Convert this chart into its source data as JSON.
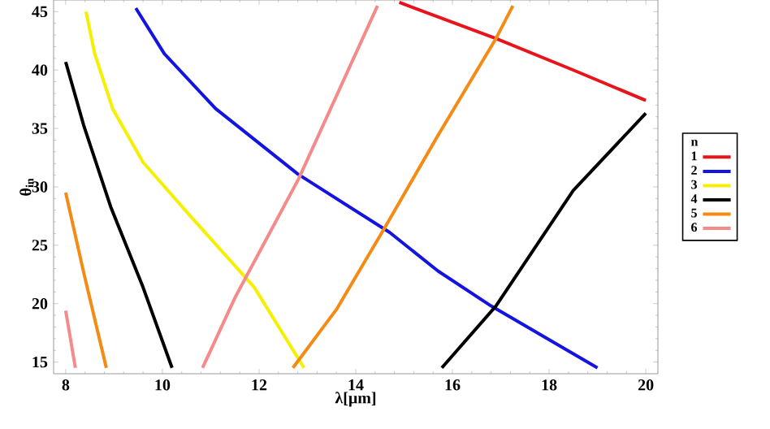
{
  "chart_data": {
    "type": "line",
    "xlabel": "λ[μm]",
    "ylabel": "θ$_{in}$",
    "legend_title": "n",
    "legend": "right",
    "grid": false,
    "xlim": [
      7.75,
      20.25
    ],
    "ylim": [
      14,
      46
    ],
    "xticks": [
      8,
      10,
      12,
      14,
      16,
      18,
      20
    ],
    "yticks": [
      15,
      20,
      25,
      30,
      35,
      40,
      45
    ],
    "series": [
      {
        "name": "1",
        "color": "#e8141c",
        "x": [
          14.9,
          16.9,
          18.5,
          20.0
        ],
        "values": [
          45.8,
          42.7,
          40.0,
          37.4
        ]
      },
      {
        "name": "2",
        "color": "#1414e0",
        "x": [
          9.45,
          10.04,
          11.1,
          12.8,
          14.7,
          15.7,
          16.8,
          19.0
        ],
        "values": [
          45.3,
          41.4,
          36.7,
          31.1,
          26.1,
          22.8,
          19.8,
          14.5
        ]
      },
      {
        "name": "3",
        "color": "#f5f000",
        "x": [
          8.42,
          8.6,
          8.97,
          9.6,
          10.6,
          11.9,
          12.93
        ],
        "values": [
          45,
          41.4,
          36.7,
          32.1,
          27.4,
          21.4,
          14.5
        ]
      },
      {
        "name": "4",
        "color": "#000000",
        "x": [
          8.0,
          8.37,
          8.93,
          9.6,
          10.2,
          13.0,
          15.78,
          16.9,
          18.5,
          20.0
        ],
        "values": [
          40.7,
          35.3,
          28.3,
          21.4,
          14.5,
          null,
          14.5,
          19.8,
          29.7,
          36.3
        ]
      },
      {
        "name": "5",
        "color": "#f58a14",
        "x": [
          8.0,
          8.37,
          8.84,
          10.8,
          12.7,
          13.6,
          14.6,
          15.7,
          16.9,
          17.25
        ],
        "values": [
          29.5,
          22.7,
          14.5,
          null,
          14.5,
          19.5,
          26.5,
          34.4,
          42.7,
          45.5
        ]
      },
      {
        "name": "6",
        "color": "#f58a8a",
        "x": [
          8.0,
          8.2,
          9.5,
          10.83,
          11.5,
          12.82,
          14.45
        ],
        "values": [
          19.4,
          14.5,
          null,
          14.5,
          20.5,
          30.7,
          45.5
        ]
      }
    ]
  }
}
